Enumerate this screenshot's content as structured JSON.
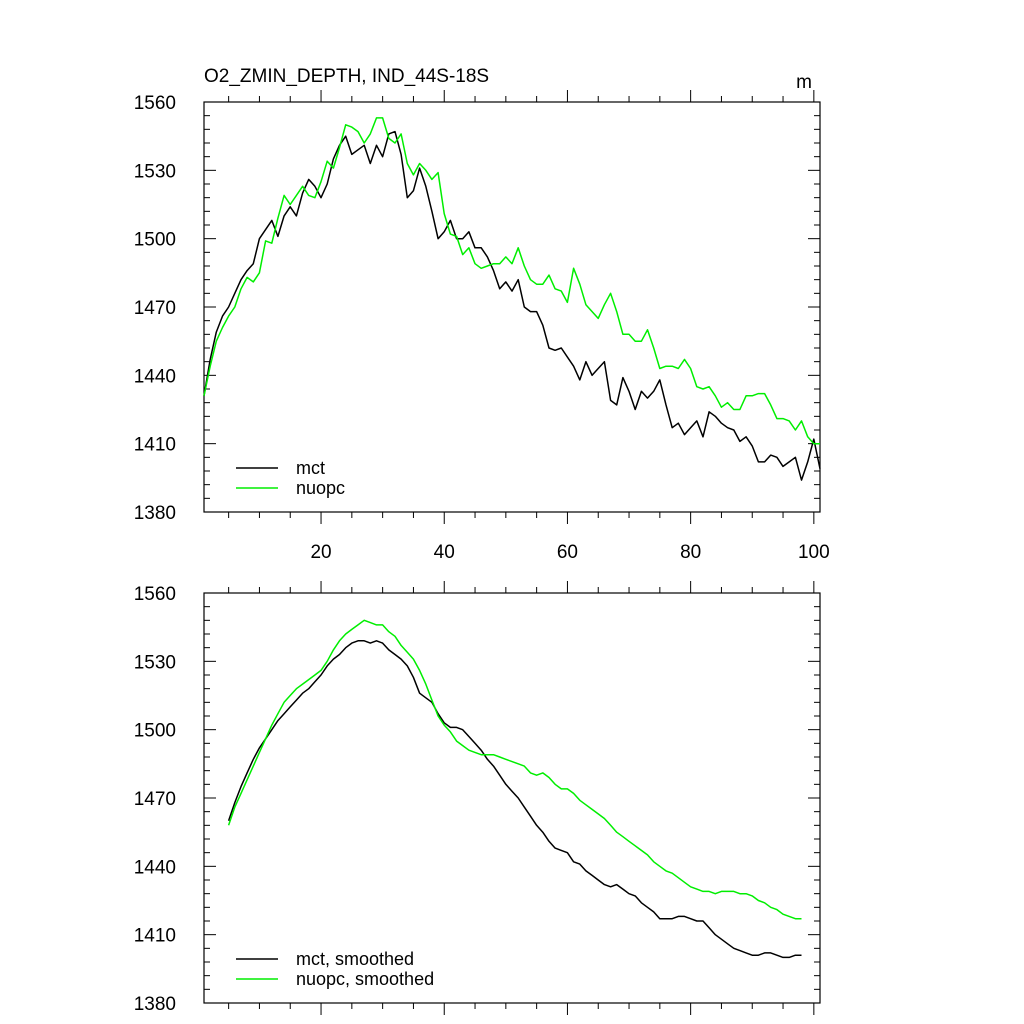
{
  "chart_data": [
    {
      "type": "line",
      "title": "O2_ZMIN_DEPTH, IND_44S-18S",
      "units": "m",
      "xlabel": "",
      "ylabel": "",
      "xlim": [
        1,
        101
      ],
      "ylim": [
        1380,
        1560
      ],
      "xticks": [
        20,
        40,
        60,
        80,
        100
      ],
      "yticks": [
        1380,
        1410,
        1440,
        1470,
        1500,
        1530,
        1560
      ],
      "show_x_tick_labels": true,
      "legend_position": "bottom-left",
      "series": [
        {
          "name": "mct",
          "color": "#000000",
          "x": [
            1,
            2,
            3,
            4,
            5,
            6,
            7,
            8,
            9,
            10,
            11,
            12,
            13,
            14,
            15,
            16,
            17,
            18,
            19,
            20,
            21,
            22,
            23,
            24,
            25,
            26,
            27,
            28,
            29,
            30,
            31,
            32,
            33,
            34,
            35,
            36,
            37,
            38,
            39,
            40,
            41,
            42,
            43,
            44,
            45,
            46,
            47,
            48,
            49,
            50,
            51,
            52,
            53,
            54,
            55,
            56,
            57,
            58,
            59,
            60,
            61,
            62,
            63,
            64,
            65,
            66,
            67,
            68,
            69,
            70,
            71,
            72,
            73,
            74,
            75,
            76,
            77,
            78,
            79,
            80,
            81,
            82,
            83,
            84,
            85,
            86,
            87,
            88,
            89,
            90,
            91,
            92,
            93,
            94,
            95,
            96,
            97,
            98,
            99,
            100,
            101
          ],
          "values": [
            1431,
            1447,
            1459,
            1466,
            1470,
            1476,
            1482,
            1486,
            1489,
            1500,
            1504,
            1508,
            1501,
            1510,
            1514,
            1510,
            1520,
            1526,
            1523,
            1518,
            1524,
            1535,
            1541,
            1545,
            1537,
            1539,
            1541,
            1533,
            1541,
            1536,
            1546,
            1547,
            1537,
            1518,
            1521,
            1531,
            1523,
            1512,
            1500,
            1503,
            1508,
            1500,
            1500,
            1503,
            1496,
            1496,
            1492,
            1486,
            1478,
            1481,
            1477,
            1482,
            1470,
            1468,
            1468,
            1462,
            1452,
            1451,
            1452,
            1448,
            1444,
            1438,
            1446,
            1440,
            1443,
            1446,
            1429,
            1427,
            1439,
            1433,
            1425,
            1433,
            1430,
            1433,
            1438,
            1427,
            1417,
            1419,
            1414,
            1417,
            1420,
            1413,
            1424,
            1422,
            1419,
            1417,
            1416,
            1411,
            1413,
            1409,
            1402,
            1402,
            1405,
            1404,
            1400,
            1402,
            1404,
            1394,
            1402,
            1412,
            1399
          ]
        },
        {
          "name": "nuopc",
          "color": "#00ee00",
          "x": [
            1,
            2,
            3,
            4,
            5,
            6,
            7,
            8,
            9,
            10,
            11,
            12,
            13,
            14,
            15,
            16,
            17,
            18,
            19,
            20,
            21,
            22,
            23,
            24,
            25,
            26,
            27,
            28,
            29,
            30,
            31,
            32,
            33,
            34,
            35,
            36,
            37,
            38,
            39,
            40,
            41,
            42,
            43,
            44,
            45,
            46,
            47,
            48,
            49,
            50,
            51,
            52,
            53,
            54,
            55,
            56,
            57,
            58,
            59,
            60,
            61,
            62,
            63,
            64,
            65,
            66,
            67,
            68,
            69,
            70,
            71,
            72,
            73,
            74,
            75,
            76,
            77,
            78,
            79,
            80,
            81,
            82,
            83,
            84,
            85,
            86,
            87,
            88,
            89,
            90,
            91,
            92,
            93,
            94,
            95,
            96,
            97,
            98,
            99,
            100,
            101
          ],
          "values": [
            1431,
            1444,
            1455,
            1461,
            1466,
            1470,
            1478,
            1483,
            1481,
            1485,
            1499,
            1498,
            1509,
            1519,
            1515,
            1519,
            1523,
            1519,
            1518,
            1525,
            1534,
            1531,
            1540,
            1550,
            1549,
            1547,
            1542,
            1546,
            1553,
            1553,
            1544,
            1542,
            1546,
            1533,
            1528,
            1533,
            1530,
            1526,
            1529,
            1511,
            1502,
            1501,
            1493,
            1496,
            1489,
            1487,
            1488,
            1489,
            1489,
            1492,
            1489,
            1496,
            1488,
            1482,
            1480,
            1480,
            1484,
            1478,
            1477,
            1472,
            1487,
            1480,
            1471,
            1468,
            1465,
            1471,
            1476,
            1468,
            1458,
            1458,
            1455,
            1455,
            1460,
            1452,
            1443,
            1444,
            1444,
            1443,
            1447,
            1443,
            1435,
            1434,
            1435,
            1431,
            1426,
            1428,
            1425,
            1425,
            1431,
            1431,
            1432,
            1432,
            1427,
            1421,
            1421,
            1420,
            1416,
            1420,
            1413,
            1410,
            1410
          ]
        }
      ]
    },
    {
      "type": "line",
      "title": "",
      "xlabel": "",
      "ylabel": "",
      "xlim": [
        1,
        101
      ],
      "ylim": [
        1380,
        1560
      ],
      "xticks": [
        20,
        40,
        60,
        80,
        100
      ],
      "yticks": [
        1380,
        1410,
        1440,
        1470,
        1500,
        1530,
        1560
      ],
      "show_x_tick_labels": false,
      "legend_position": "bottom-left",
      "series": [
        {
          "name": "mct, smoothed",
          "color": "#000000",
          "x": [
            5,
            6,
            7,
            8,
            9,
            10,
            11,
            12,
            13,
            14,
            15,
            16,
            17,
            18,
            19,
            20,
            21,
            22,
            23,
            24,
            25,
            26,
            27,
            28,
            29,
            30,
            31,
            32,
            33,
            34,
            35,
            36,
            37,
            38,
            39,
            40,
            41,
            42,
            43,
            44,
            45,
            46,
            47,
            48,
            49,
            50,
            51,
            52,
            53,
            54,
            55,
            56,
            57,
            58,
            59,
            60,
            61,
            62,
            63,
            64,
            65,
            66,
            67,
            68,
            69,
            70,
            71,
            72,
            73,
            74,
            75,
            76,
            77,
            78,
            79,
            80,
            81,
            82,
            83,
            84,
            85,
            86,
            87,
            88,
            89,
            90,
            91,
            92,
            93,
            94,
            95,
            96,
            97,
            98
          ],
          "values": [
            1460,
            1468,
            1475,
            1481,
            1487,
            1492,
            1496,
            1500,
            1504,
            1507,
            1510,
            1513,
            1516,
            1518,
            1521,
            1524,
            1528,
            1531,
            1533,
            1536,
            1538,
            1539,
            1539,
            1538,
            1539,
            1538,
            1535,
            1533,
            1531,
            1528,
            1523,
            1516,
            1514,
            1512,
            1507,
            1503,
            1501,
            1501,
            1500,
            1497,
            1494,
            1491,
            1487,
            1484,
            1480,
            1476,
            1473,
            1470,
            1466,
            1462,
            1458,
            1455,
            1451,
            1448,
            1447,
            1446,
            1442,
            1441,
            1438,
            1436,
            1434,
            1432,
            1431,
            1432,
            1430,
            1428,
            1427,
            1424,
            1422,
            1420,
            1417,
            1417,
            1417,
            1418,
            1418,
            1417,
            1416,
            1416,
            1413,
            1410,
            1408,
            1406,
            1404,
            1403,
            1402,
            1401,
            1401,
            1402,
            1402,
            1401,
            1400,
            1400,
            1401,
            1401
          ]
        },
        {
          "name": "nuopc, smoothed",
          "color": "#00ee00",
          "x": [
            5,
            6,
            7,
            8,
            9,
            10,
            11,
            12,
            13,
            14,
            15,
            16,
            17,
            18,
            19,
            20,
            21,
            22,
            23,
            24,
            25,
            26,
            27,
            28,
            29,
            30,
            31,
            32,
            33,
            34,
            35,
            36,
            37,
            38,
            39,
            40,
            41,
            42,
            43,
            44,
            45,
            46,
            47,
            48,
            49,
            50,
            51,
            52,
            53,
            54,
            55,
            56,
            57,
            58,
            59,
            60,
            61,
            62,
            63,
            64,
            65,
            66,
            67,
            68,
            69,
            70,
            71,
            72,
            73,
            74,
            75,
            76,
            77,
            78,
            79,
            80,
            81,
            82,
            83,
            84,
            85,
            86,
            87,
            88,
            89,
            90,
            91,
            92,
            93,
            94,
            95,
            96,
            97,
            98
          ],
          "values": [
            1458,
            1466,
            1472,
            1478,
            1484,
            1490,
            1496,
            1502,
            1507,
            1512,
            1515,
            1518,
            1520,
            1522,
            1524,
            1526,
            1530,
            1535,
            1539,
            1542,
            1544,
            1546,
            1548,
            1547,
            1546,
            1546,
            1543,
            1541,
            1537,
            1534,
            1531,
            1526,
            1520,
            1513,
            1506,
            1502,
            1499,
            1495,
            1493,
            1491,
            1490,
            1489,
            1489,
            1489,
            1488,
            1487,
            1486,
            1485,
            1484,
            1481,
            1480,
            1481,
            1479,
            1476,
            1474,
            1474,
            1472,
            1469,
            1467,
            1465,
            1463,
            1461,
            1458,
            1455,
            1453,
            1451,
            1449,
            1447,
            1445,
            1442,
            1440,
            1438,
            1437,
            1435,
            1433,
            1431,
            1430,
            1429,
            1429,
            1428,
            1429,
            1429,
            1429,
            1428,
            1428,
            1427,
            1425,
            1424,
            1422,
            1421,
            1419,
            1418,
            1417,
            1417
          ]
        }
      ]
    }
  ]
}
